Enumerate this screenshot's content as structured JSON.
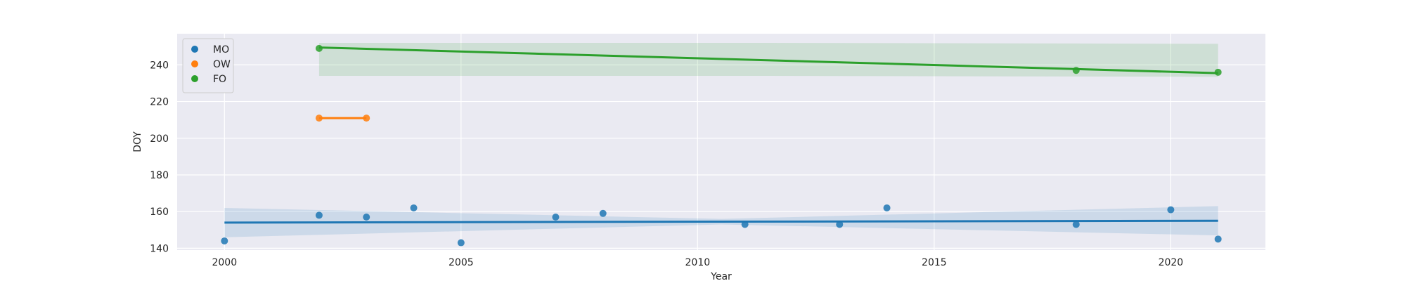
{
  "chart_data": {
    "type": "scatter",
    "title": "",
    "xlabel": "Year",
    "ylabel": "DOY",
    "xlim": [
      1999,
      2022
    ],
    "ylim": [
      139,
      257
    ],
    "xticks": [
      2000,
      2005,
      2010,
      2015,
      2020
    ],
    "yticks": [
      140,
      160,
      180,
      200,
      220,
      240
    ],
    "grid": true,
    "legend_position": "top-left",
    "series": [
      {
        "name": "MO",
        "color": "#1f77b4",
        "points": [
          {
            "x": 2000,
            "y": 144
          },
          {
            "x": 2002,
            "y": 158
          },
          {
            "x": 2003,
            "y": 157
          },
          {
            "x": 2004,
            "y": 162
          },
          {
            "x": 2005,
            "y": 143
          },
          {
            "x": 2007,
            "y": 157
          },
          {
            "x": 2008,
            "y": 159
          },
          {
            "x": 2011,
            "y": 153
          },
          {
            "x": 2013,
            "y": 153
          },
          {
            "x": 2014,
            "y": 162
          },
          {
            "x": 2018,
            "y": 153
          },
          {
            "x": 2020,
            "y": 161
          },
          {
            "x": 2021,
            "y": 145
          }
        ],
        "trend": {
          "x": [
            2000,
            2021
          ],
          "y": [
            154,
            155
          ]
        },
        "band": {
          "x": [
            2000,
            2010.5,
            2021
          ],
          "lower": [
            146,
            153,
            147
          ],
          "upper": [
            162,
            156,
            163
          ]
        }
      },
      {
        "name": "OW",
        "color": "#ff7f0e",
        "points": [
          {
            "x": 2002,
            "y": 211
          },
          {
            "x": 2003,
            "y": 211
          }
        ],
        "trend": {
          "x": [
            2002,
            2003
          ],
          "y": [
            211,
            211
          ]
        }
      },
      {
        "name": "FO",
        "color": "#2ca02c",
        "points": [
          {
            "x": 2002,
            "y": 249
          },
          {
            "x": 2018,
            "y": 237
          },
          {
            "x": 2021,
            "y": 236
          }
        ],
        "trend": {
          "x": [
            2002,
            2021
          ],
          "y": [
            249.5,
            235.5
          ]
        },
        "band": {
          "x": [
            2002,
            2011.5,
            2021
          ],
          "lower": [
            234,
            234,
            233.5
          ],
          "upper": [
            252,
            252,
            251.5
          ]
        }
      }
    ]
  }
}
